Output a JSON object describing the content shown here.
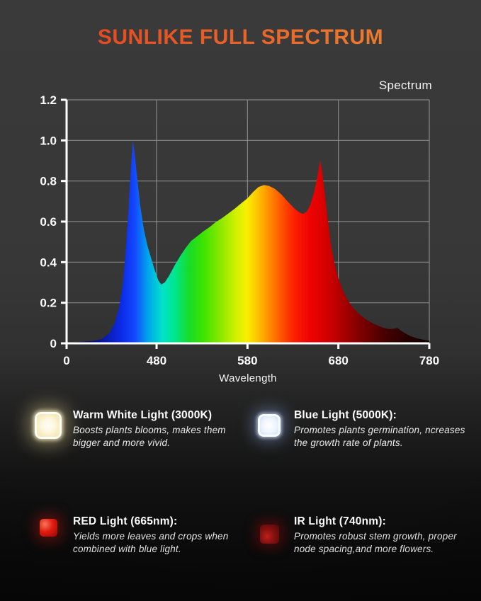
{
  "header": {
    "title": "SUNLIKE FULL SPECTRUM",
    "title_gradient": [
      "#e23a1d",
      "#ef8c33"
    ]
  },
  "chart_data": {
    "type": "area",
    "title": "Spectrum",
    "xlabel": "Wavelength",
    "ylabel": "",
    "x_range": [
      381,
      780
    ],
    "ylim": [
      0,
      1.2
    ],
    "grid": true,
    "axis_color": "#ffffff",
    "grid_color": "#9a9a9a",
    "x_ticks": [
      {
        "value": 381,
        "label": "0"
      },
      {
        "value": 480,
        "label": "480"
      },
      {
        "value": 580,
        "label": "580"
      },
      {
        "value": 680,
        "label": "680"
      },
      {
        "value": 780,
        "label": "780"
      }
    ],
    "y_ticks": [
      {
        "value": 0,
        "label": "0"
      },
      {
        "value": 0.2,
        "label": "0.2"
      },
      {
        "value": 0.4,
        "label": "0.4"
      },
      {
        "value": 0.6,
        "label": "0.6"
      },
      {
        "value": 0.8,
        "label": "0.8"
      },
      {
        "value": 1.0,
        "label": "1.0"
      },
      {
        "value": 1.2,
        "label": "1.2"
      }
    ],
    "series": [
      {
        "name": "Spectrum",
        "x": [
          385,
          400,
          410,
          420,
          428,
          434,
          439,
          443,
          446,
          449,
          452,
          454,
          456,
          459,
          462,
          466,
          470,
          474,
          478,
          482,
          485,
          489,
          494,
          500,
          506,
          512,
          518,
          524,
          531,
          538,
          545,
          552,
          559,
          566,
          573,
          580,
          586,
          592,
          598,
          604,
          610,
          617,
          624,
          631,
          637,
          641,
          645,
          649,
          653,
          656,
          658,
          660,
          662,
          665,
          668,
          672,
          676,
          680,
          685,
          690,
          696,
          702,
          709,
          716,
          723,
          730,
          736,
          741,
          745,
          749,
          754,
          760,
          767,
          773,
          780
        ],
        "y": [
          0.005,
          0.008,
          0.012,
          0.022,
          0.05,
          0.1,
          0.18,
          0.3,
          0.45,
          0.65,
          0.88,
          1.0,
          0.93,
          0.8,
          0.68,
          0.56,
          0.48,
          0.42,
          0.36,
          0.31,
          0.29,
          0.3,
          0.335,
          0.385,
          0.43,
          0.47,
          0.505,
          0.525,
          0.55,
          0.572,
          0.597,
          0.617,
          0.64,
          0.664,
          0.69,
          0.715,
          0.745,
          0.77,
          0.78,
          0.775,
          0.762,
          0.735,
          0.7,
          0.667,
          0.645,
          0.638,
          0.648,
          0.68,
          0.74,
          0.8,
          0.85,
          0.9,
          0.85,
          0.74,
          0.62,
          0.48,
          0.39,
          0.32,
          0.26,
          0.215,
          0.175,
          0.148,
          0.122,
          0.103,
          0.088,
          0.076,
          0.07,
          0.072,
          0.076,
          0.062,
          0.048,
          0.034,
          0.024,
          0.018,
          0.013
        ]
      }
    ],
    "notable_features": {
      "blue_peak": {
        "wavelength": 454,
        "intensity": 1.0
      },
      "valley": {
        "wavelength": 485,
        "intensity": 0.29
      },
      "broad_peak": {
        "wavelength": 598,
        "intensity": 0.78
      },
      "red_peak": {
        "wavelength": 660,
        "intensity": 0.9
      },
      "ir_bump": {
        "wavelength": 745,
        "intensity": 0.076
      }
    },
    "fill_gradient_stops": [
      {
        "wavelength": 385,
        "color": "#07071e"
      },
      {
        "wavelength": 420,
        "color": "#0a17a0"
      },
      {
        "wavelength": 442,
        "color": "#0b2ce8"
      },
      {
        "wavelength": 456,
        "color": "#1448ff"
      },
      {
        "wavelength": 470,
        "color": "#00a2ec"
      },
      {
        "wavelength": 486,
        "color": "#00e2cc"
      },
      {
        "wavelength": 500,
        "color": "#00e68e"
      },
      {
        "wavelength": 516,
        "color": "#16dc28"
      },
      {
        "wavelength": 532,
        "color": "#3fe400"
      },
      {
        "wavelength": 550,
        "color": "#8ae800"
      },
      {
        "wavelength": 566,
        "color": "#cdf000"
      },
      {
        "wavelength": 579,
        "color": "#f8f000"
      },
      {
        "wavelength": 591,
        "color": "#ffc400"
      },
      {
        "wavelength": 603,
        "color": "#ff9000"
      },
      {
        "wavelength": 616,
        "color": "#ff5a00"
      },
      {
        "wavelength": 631,
        "color": "#fb2100"
      },
      {
        "wavelength": 648,
        "color": "#ef0303"
      },
      {
        "wavelength": 666,
        "color": "#d60000"
      },
      {
        "wavelength": 686,
        "color": "#a80000"
      },
      {
        "wavelength": 706,
        "color": "#7a0000"
      },
      {
        "wavelength": 731,
        "color": "#470000"
      },
      {
        "wavelength": 756,
        "color": "#250000"
      },
      {
        "wavelength": 780,
        "color": "#130000"
      }
    ]
  },
  "legend": {
    "items": [
      {
        "icon": "warm-white-led",
        "title": "Warm White Light (3000K)",
        "description": "Boosts plants blooms, makes them bigger and more vivid."
      },
      {
        "icon": "blue-led",
        "title": "Blue Light (5000K):",
        "description": "Promotes plants germination, ncreases the growth rate of plants."
      },
      {
        "icon": "red-led",
        "title": "RED Light (665nm):",
        "description": "Yields more leaves and crops when combined with blue light."
      },
      {
        "icon": "ir-led",
        "title": "IR Light (740nm):",
        "description": "Promotes robust stem growth, proper node spacing,and more flowers."
      }
    ]
  }
}
